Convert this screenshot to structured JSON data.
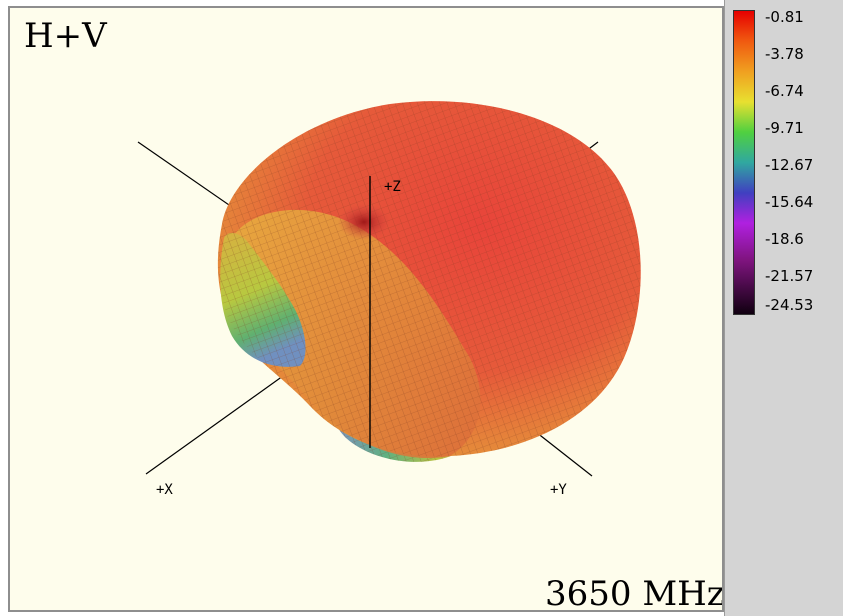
{
  "plot": {
    "mode_label": "H+V",
    "frequency_label": "3650 MHz",
    "axis_labels": {
      "x": "+X",
      "y": "+Y",
      "z": "+Z"
    }
  },
  "legend": {
    "ticks": [
      "-0.81",
      "-3.78",
      "-6.74",
      "-9.71",
      "-12.67",
      "-15.64",
      "-18.6",
      "-21.57",
      "-24.53"
    ],
    "colors": [
      "#e60000",
      "#f05a10",
      "#f0a020",
      "#e8e030",
      "#50d040",
      "#30a8a0",
      "#4040c0",
      "#b020e0",
      "#801480",
      "#100010"
    ]
  },
  "chart_data": {
    "type": "heatmap",
    "title": "H+V",
    "subtitle": "3650 MHz",
    "axes": [
      "+X",
      "+Y",
      "+Z"
    ],
    "colorbar": {
      "max": -0.81,
      "min": -24.53,
      "ticks": [
        -0.81,
        -3.78,
        -6.74,
        -9.71,
        -12.67,
        -15.64,
        -18.6,
        -21.57,
        -24.53
      ]
    }
  }
}
